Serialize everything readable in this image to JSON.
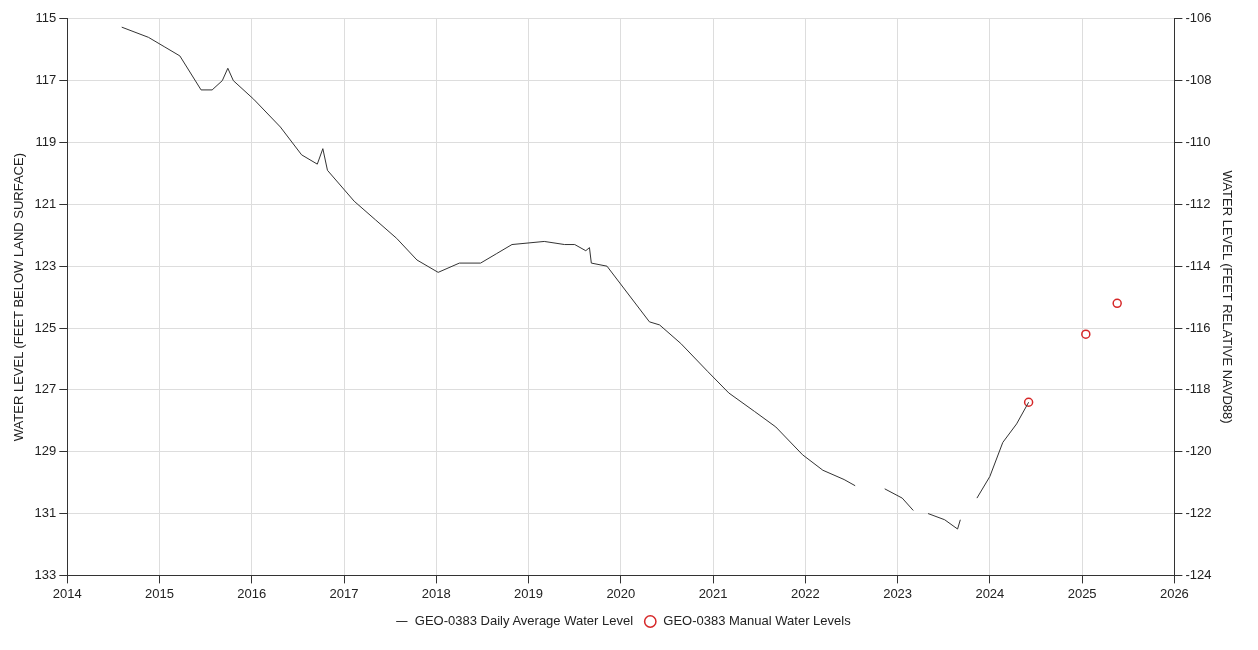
{
  "chart_data": {
    "type": "line",
    "ylabel": "WATER LEVEL (FEET BELOW LAND SURFACE)",
    "y2label": "WATER LEVEL (FEET RELATIVE NAVD88)",
    "xlim": [
      2014,
      2026
    ],
    "xticks": [
      2014,
      2015,
      2016,
      2017,
      2018,
      2019,
      2020,
      2021,
      2022,
      2023,
      2024,
      2025,
      2026
    ],
    "ylim": [
      133,
      115
    ],
    "yticks": [
      115,
      117,
      119,
      121,
      123,
      125,
      127,
      129,
      131,
      133
    ],
    "y2lim": [
      -124,
      -106
    ],
    "y2ticks": [
      -124,
      -122,
      -120,
      -118,
      -116,
      -114,
      -112,
      -110,
      -108,
      -106
    ],
    "grid": true,
    "legend": "bottom",
    "series": [
      {
        "name": "GEO-0383 Daily Average Water Level",
        "marker": "none",
        "color": "#333333",
        "x": [
          2014.59,
          2014.88,
          2015.05,
          2015.22,
          2015.45,
          2015.57,
          2015.68,
          2015.74,
          2015.8,
          2016.02,
          2016.31,
          2016.54,
          2016.71,
          2016.77,
          2016.82,
          2017.11,
          2017.34,
          2017.57,
          2017.79,
          2018.02,
          2018.25,
          2018.48,
          2018.65,
          2018.82,
          2019.17,
          2019.39,
          2019.5,
          2019.62,
          2019.66,
          2019.68,
          2019.85,
          2020.08,
          2020.31,
          2020.42,
          2020.65,
          2020.94,
          2021.17,
          2021.45,
          2021.68,
          2021.97,
          2022.19,
          2022.42,
          2022.54,
          2022.7,
          2022.86,
          2023.05,
          2023.17,
          2023.25,
          2023.33,
          2023.51,
          2023.65,
          2023.68,
          2023.77,
          2023.86,
          2024.0,
          2024.14,
          2024.29,
          2024.42
        ],
        "values": [
          115.27,
          115.6,
          115.9,
          116.2,
          117.3,
          117.3,
          117.0,
          116.6,
          117.0,
          117.6,
          118.5,
          119.4,
          119.7,
          119.2,
          119.9,
          120.9,
          121.5,
          122.1,
          122.8,
          123.2,
          122.9,
          122.9,
          122.6,
          122.3,
          122.2,
          122.3,
          122.3,
          122.5,
          122.4,
          122.9,
          123.0,
          123.9,
          124.8,
          124.9,
          125.5,
          126.4,
          127.1,
          127.7,
          128.2,
          129.1,
          129.6,
          129.9,
          130.1,
          null,
          130.2,
          130.5,
          130.9,
          null,
          131.0,
          131.2,
          131.5,
          131.2,
          null,
          130.5,
          129.8,
          128.7,
          128.1,
          127.4
        ]
      },
      {
        "name": "GEO-0383 Manual Water Levels",
        "type": "scatter",
        "marker": "circle",
        "color": "#d62728",
        "x": [
          2024.42,
          2025.04,
          2025.38
        ],
        "values": [
          127.4,
          125.2,
          124.2
        ]
      }
    ]
  }
}
